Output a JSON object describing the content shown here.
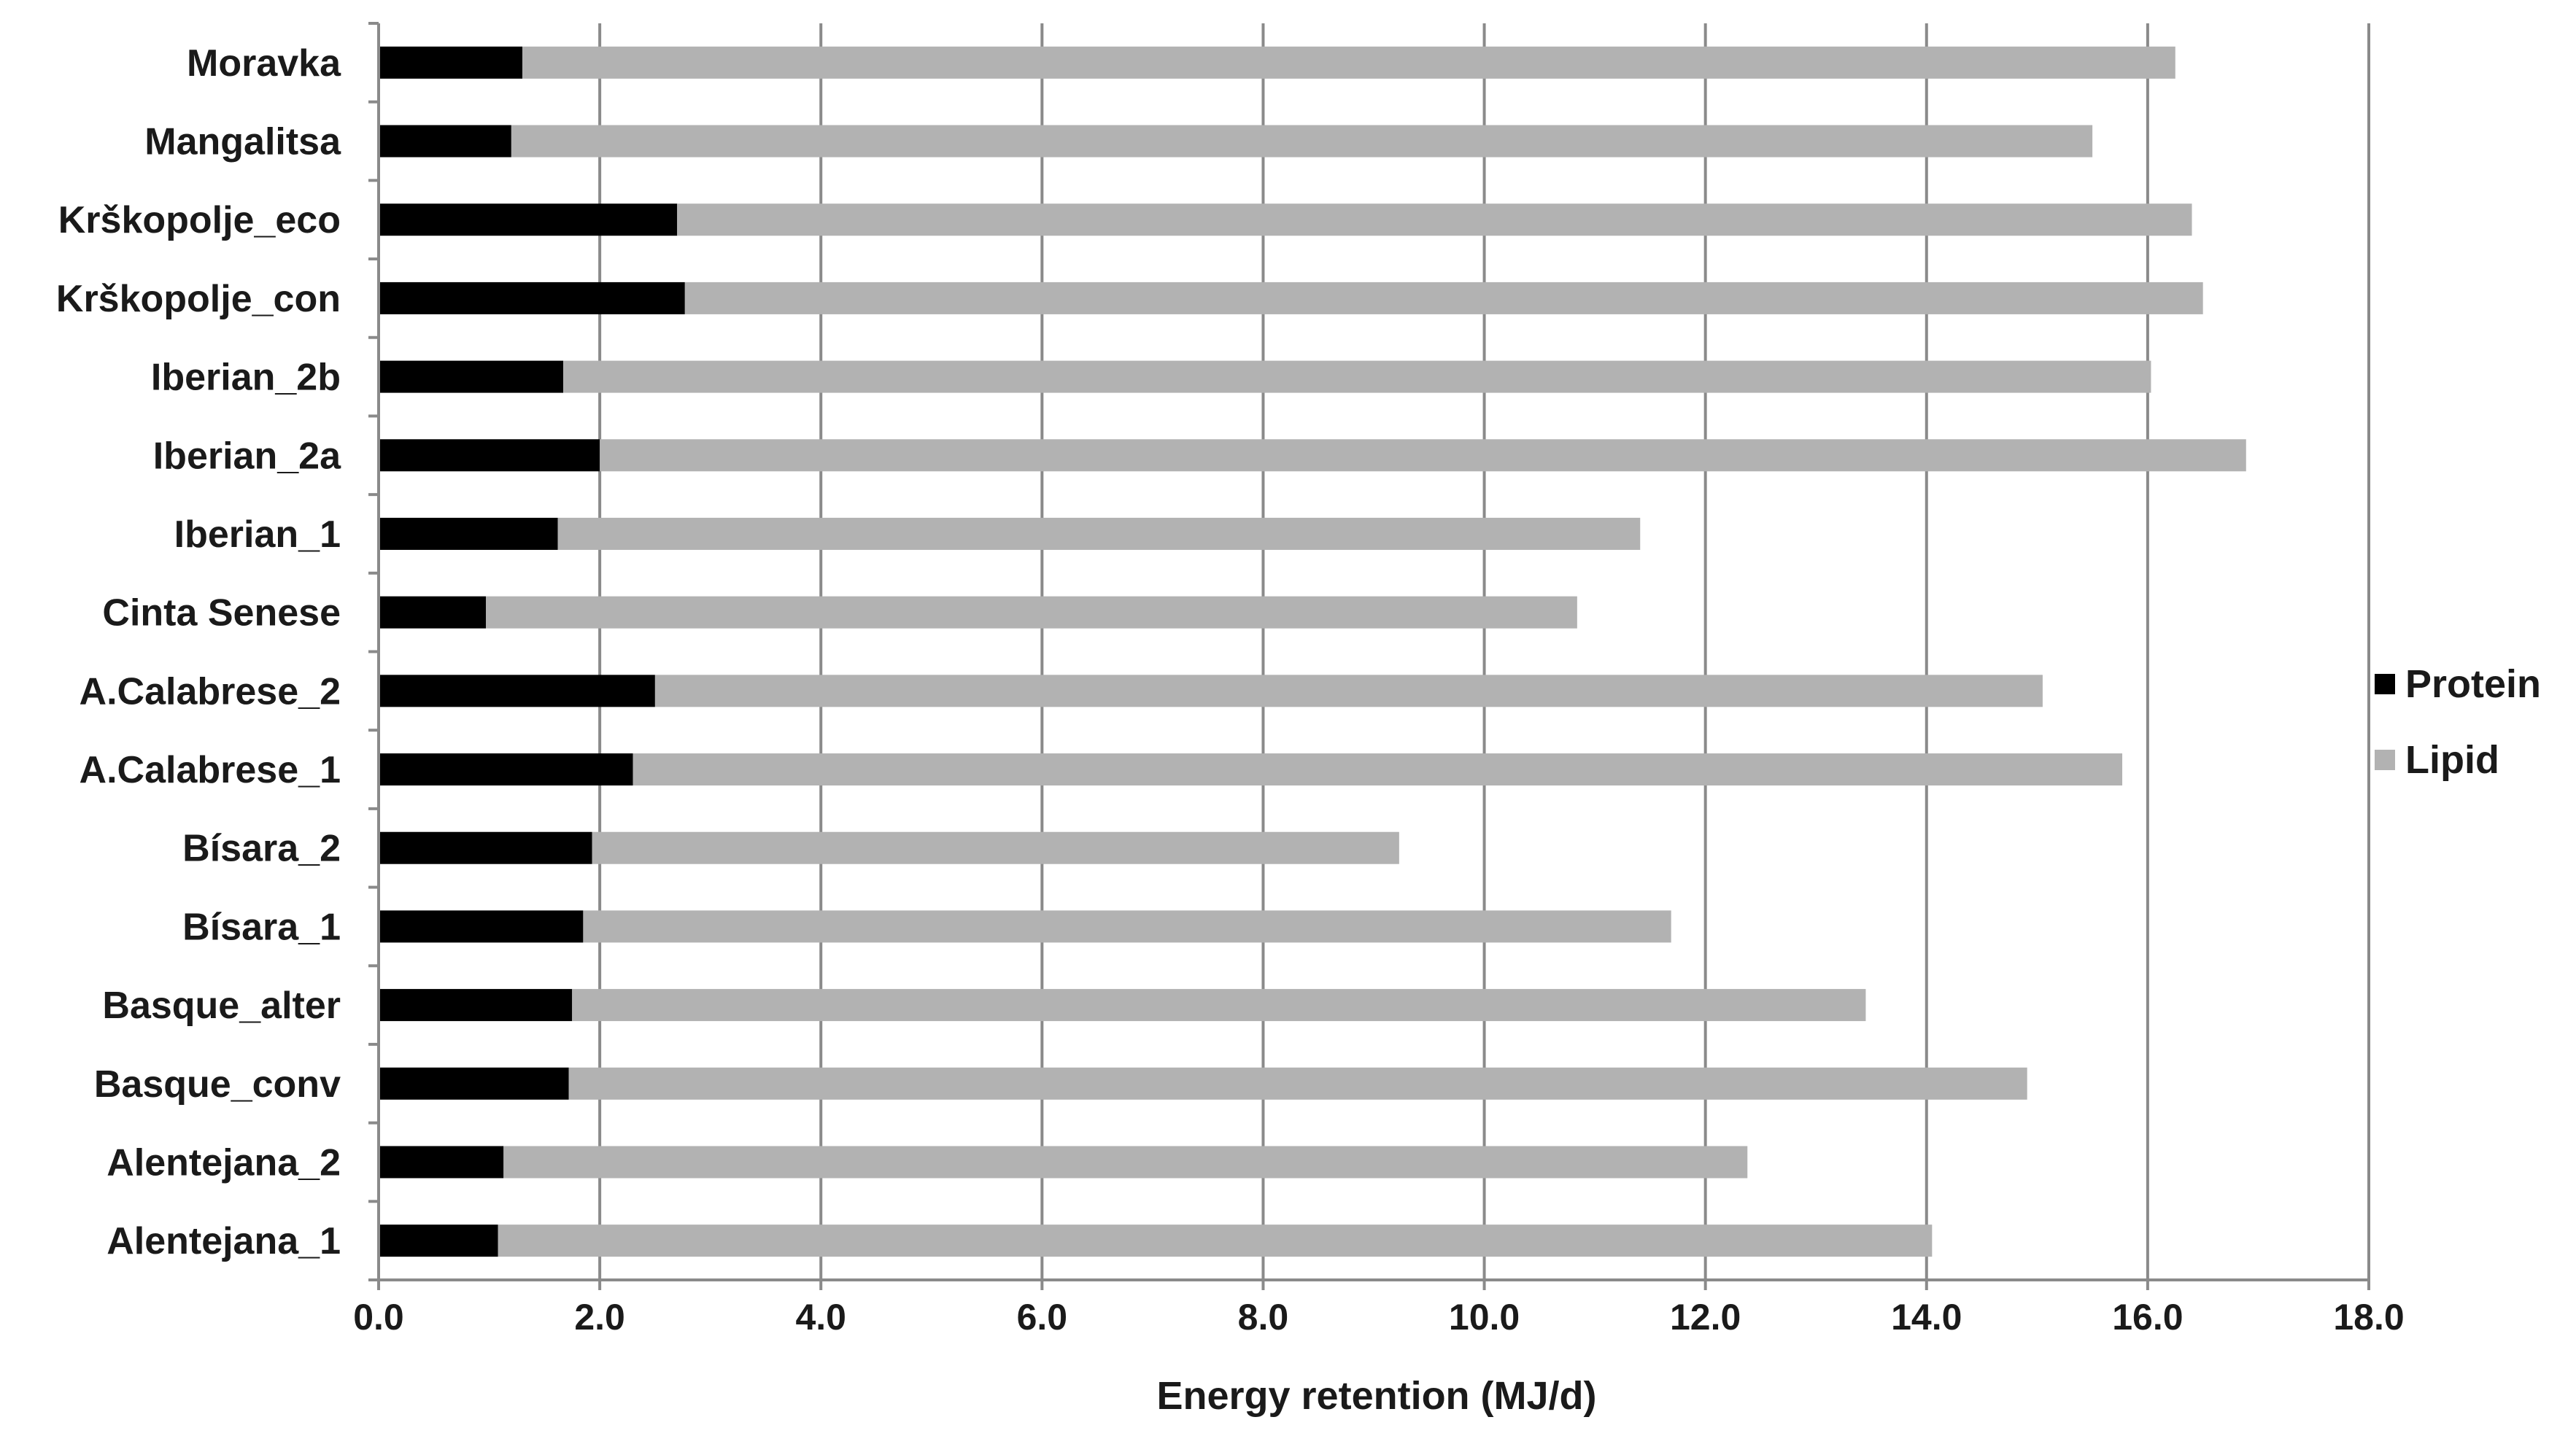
{
  "chart_data": {
    "type": "bar",
    "orientation": "horizontal",
    "stacked": true,
    "title": "",
    "xlabel": "Energy retention (MJ/d)",
    "ylabel": "",
    "xlim": [
      0,
      18
    ],
    "x_ticks": [
      "0.0",
      "2.0",
      "4.0",
      "6.0",
      "8.0",
      "10.0",
      "12.0",
      "14.0",
      "16.0",
      "18.0"
    ],
    "grid": "vertical",
    "legend_position": "right",
    "categories": [
      "Moravka",
      "Mangalitsa",
      "Krškopolje_eco",
      "Krškopolje_con",
      "Iberian_2b",
      "Iberian_2a",
      "Iberian_1",
      "Cinta Senese",
      "A.Calabrese_2",
      "A.Calabrese_1",
      "Bísara_2",
      "Bísara_1",
      "Basque_alter",
      "Basque_conv",
      "Alentejana_2",
      "Alentejana_1"
    ],
    "series": [
      {
        "name": "Protein",
        "color": "#000000",
        "values": [
          1.3,
          1.2,
          2.7,
          2.77,
          1.67,
          2.0,
          1.62,
          0.97,
          2.5,
          2.3,
          1.93,
          1.85,
          1.75,
          1.72,
          1.13,
          1.08
        ]
      },
      {
        "name": "Lipid",
        "color": "#b2b2b2",
        "values": [
          14.95,
          14.3,
          13.7,
          13.73,
          14.36,
          14.89,
          9.79,
          9.87,
          12.55,
          13.47,
          7.3,
          9.84,
          11.7,
          13.19,
          11.25,
          12.97
        ]
      }
    ]
  }
}
